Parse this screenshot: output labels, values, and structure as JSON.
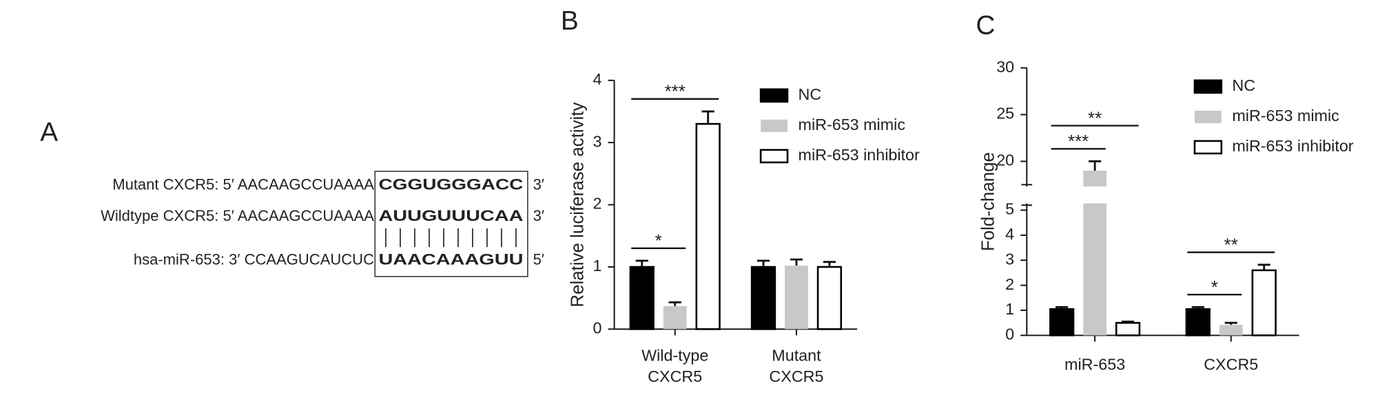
{
  "panel_a": {
    "title": "A",
    "rows": [
      {
        "prefix": "Mutant CXCR5: 5′ AACAAGCCUAAAA",
        "site": "CGGUGGGACC",
        "end": "3′"
      },
      {
        "prefix": "Wildtype CXCR5: 5′ AACAAGCCUAAAA",
        "site": "AUUGUUUCAA",
        "end": "3′"
      },
      {
        "prefix": "hsa-miR-653: 3′ CCAAGUCAUCUC",
        "site": "UAACAAAGUU",
        "end": "5′"
      }
    ]
  },
  "chart_data": [
    {
      "type": "bar",
      "title": "B",
      "ylabel": "Relative luciferase activity",
      "categories": [
        "Wild-type\nCXCR5",
        "Mutant\nCXCR5"
      ],
      "series": [
        {
          "name": "NC",
          "color": "#000000",
          "edgecolor": "#000000",
          "values": [
            1.0,
            1.0
          ],
          "errors": [
            0.1,
            0.1
          ]
        },
        {
          "name": "miR-653 mimic",
          "color": "#c8c8c8",
          "values": [
            0.37,
            1.02
          ],
          "errors": [
            0.06,
            0.1
          ]
        },
        {
          "name": "miR-653 inhibitor",
          "color": "#ffffff",
          "edgecolor": "#000000",
          "values": [
            3.3,
            1.0
          ],
          "errors": [
            0.2,
            0.08
          ]
        }
      ],
      "ylim": [
        0,
        4
      ],
      "yticks": [
        0,
        1,
        2,
        3,
        4
      ],
      "legend": "upper right",
      "annotations": [
        {
          "text": "*",
          "category": 0,
          "from": 0,
          "to": 1
        },
        {
          "text": "***",
          "category": 0,
          "from": 0,
          "to": 2
        }
      ]
    },
    {
      "type": "bar",
      "title": "C",
      "ylabel": "Fold-change",
      "categories": [
        "miR-653",
        "CXCR5"
      ],
      "series": [
        {
          "name": "NC",
          "color": "#000000",
          "edgecolor": "#000000",
          "values": [
            1.05,
            1.05
          ],
          "errors": [
            0.08,
            0.08
          ]
        },
        {
          "name": "miR-653 mimic",
          "color": "#c8c8c8",
          "values": [
            19.0,
            0.42
          ],
          "errors": [
            1.0,
            0.08
          ]
        },
        {
          "name": "miR-653 inhibitor",
          "color": "#ffffff",
          "edgecolor": "#000000",
          "values": [
            0.5,
            2.6
          ],
          "errors": [
            0.05,
            0.22
          ]
        }
      ],
      "ylim": [
        0,
        30
      ],
      "ybreak": [
        5.2,
        17.5
      ],
      "yticks": [
        0,
        1,
        2,
        3,
        4,
        5,
        20,
        25,
        30
      ],
      "legend": "upper right",
      "annotations": [
        {
          "text": "***",
          "category": 0,
          "from": 0,
          "to": 1
        },
        {
          "text": "**",
          "category": 0,
          "from": 0,
          "to": 2
        },
        {
          "text": "*",
          "category": 1,
          "from": 0,
          "to": 1
        },
        {
          "text": "**",
          "category": 1,
          "from": 0,
          "to": 2
        }
      ]
    }
  ]
}
